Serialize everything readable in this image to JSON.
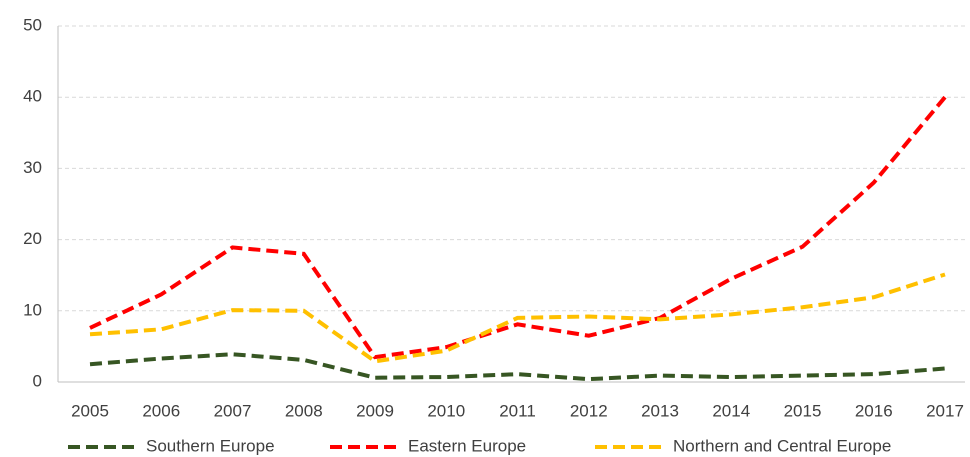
{
  "chart_data": {
    "type": "line",
    "categories": [
      "2005",
      "2006",
      "2007",
      "2008",
      "2009",
      "2010",
      "2011",
      "2012",
      "2013",
      "2014",
      "2015",
      "2016",
      "2017"
    ],
    "series": [
      {
        "name": "Southern Europe",
        "color": "#375623",
        "values": [
          2.5,
          3.3,
          3.9,
          3.1,
          0.6,
          0.7,
          1.1,
          0.4,
          0.9,
          0.7,
          0.9,
          1.1,
          1.9
        ]
      },
      {
        "name": "Eastern Europe",
        "color": "#ff0000",
        "values": [
          7.6,
          12.3,
          18.9,
          18.0,
          3.5,
          4.9,
          8.1,
          6.5,
          9.0,
          14.5,
          19.0,
          28.0,
          40.0
        ]
      },
      {
        "name": "Northern and Central Europe",
        "color": "#ffc000",
        "values": [
          6.7,
          7.4,
          10.1,
          10.0,
          2.9,
          4.4,
          9.0,
          9.2,
          8.8,
          9.5,
          10.5,
          11.9,
          15.1
        ]
      }
    ],
    "ylim": [
      0,
      50
    ],
    "yticks": [
      0,
      10,
      20,
      30,
      40,
      50
    ],
    "grid": true,
    "legend": "bottom"
  }
}
